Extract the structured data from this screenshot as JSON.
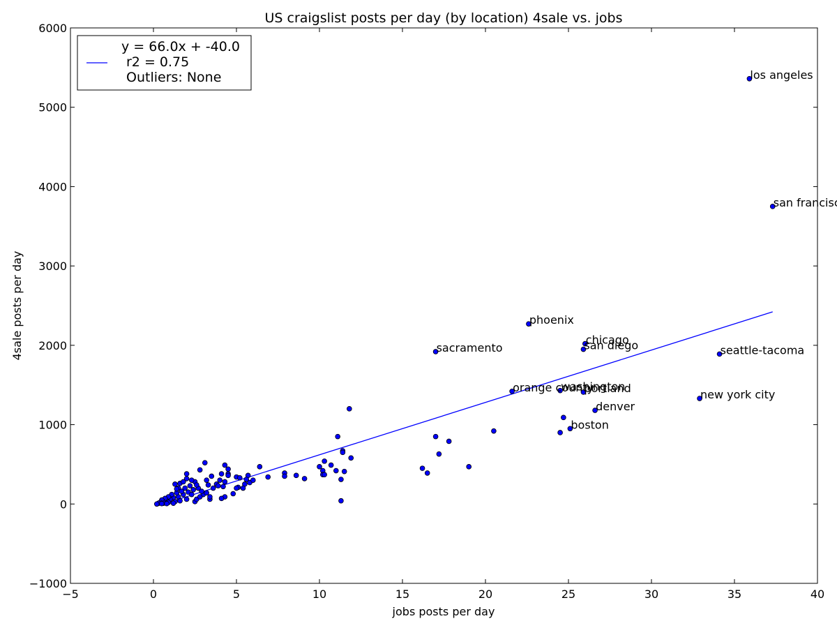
{
  "chart_data": {
    "type": "scatter",
    "title": "US craigslist posts per day (by location) 4sale vs. jobs",
    "xlabel": "jobs posts per day",
    "ylabel": "4sale posts per day",
    "xlim": [
      -5,
      40
    ],
    "ylim": [
      -1000,
      6000
    ],
    "xticks": [
      -5,
      0,
      5,
      10,
      15,
      20,
      25,
      30,
      35,
      40
    ],
    "yticks": [
      -1000,
      0,
      1000,
      2000,
      3000,
      4000,
      5000,
      6000
    ],
    "xtick_labels": [
      "−5",
      "0",
      "5",
      "10",
      "15",
      "20",
      "25",
      "30",
      "35",
      "40"
    ],
    "ytick_labels": [
      "−1000",
      "0",
      "1000",
      "2000",
      "3000",
      "4000",
      "5000",
      "6000"
    ],
    "grid": false,
    "legend": {
      "placement": "top-left",
      "line1": "y = 66.0x + -40.0",
      "line2": "r2 = 0.75",
      "line3": "Outliers: None"
    },
    "fit": {
      "slope": 66.0,
      "intercept": -40.0,
      "x_range": [
        0.2,
        37.3
      ],
      "color": "#0000ff"
    },
    "point_color": "#0000ff",
    "labeled_points": [
      {
        "label": "los angeles",
        "x": 35.9,
        "y": 5360
      },
      {
        "label": "san francisco",
        "x": 37.3,
        "y": 3750
      },
      {
        "label": "phoenix",
        "x": 22.6,
        "y": 2270
      },
      {
        "label": "chicago",
        "x": 26.0,
        "y": 2020
      },
      {
        "label": "san diego",
        "x": 25.9,
        "y": 1950
      },
      {
        "label": "sacramento",
        "x": 17.0,
        "y": 1920
      },
      {
        "label": "seattle-tacoma",
        "x": 34.1,
        "y": 1890
      },
      {
        "label": "orange county",
        "x": 21.6,
        "y": 1420
      },
      {
        "label": "washington",
        "x": 24.5,
        "y": 1430
      },
      {
        "label": "portland",
        "x": 25.9,
        "y": 1410
      },
      {
        "label": "new york city",
        "x": 32.9,
        "y": 1330
      },
      {
        "label": "denver",
        "x": 26.6,
        "y": 1180
      },
      {
        "label": "boston",
        "x": 25.1,
        "y": 950
      }
    ],
    "points": [
      {
        "x": 11.8,
        "y": 1200
      },
      {
        "x": 11.1,
        "y": 850
      },
      {
        "x": 11.4,
        "y": 670
      },
      {
        "x": 11.4,
        "y": 650
      },
      {
        "x": 11.9,
        "y": 580
      },
      {
        "x": 10.3,
        "y": 540
      },
      {
        "x": 10.7,
        "y": 490
      },
      {
        "x": 10.0,
        "y": 470
      },
      {
        "x": 10.2,
        "y": 420
      },
      {
        "x": 11.0,
        "y": 420
      },
      {
        "x": 11.5,
        "y": 410
      },
      {
        "x": 10.2,
        "y": 370
      },
      {
        "x": 10.3,
        "y": 370
      },
      {
        "x": 11.3,
        "y": 310
      },
      {
        "x": 11.3,
        "y": 40
      },
      {
        "x": 9.1,
        "y": 320
      },
      {
        "x": 8.6,
        "y": 360
      },
      {
        "x": 7.9,
        "y": 390
      },
      {
        "x": 7.9,
        "y": 350
      },
      {
        "x": 6.9,
        "y": 340
      },
      {
        "x": 6.4,
        "y": 470
      },
      {
        "x": 16.2,
        "y": 450
      },
      {
        "x": 16.5,
        "y": 390
      },
      {
        "x": 17.0,
        "y": 850
      },
      {
        "x": 17.2,
        "y": 630
      },
      {
        "x": 17.8,
        "y": 790
      },
      {
        "x": 19.0,
        "y": 470
      },
      {
        "x": 20.5,
        "y": 920
      },
      {
        "x": 24.5,
        "y": 900
      },
      {
        "x": 24.7,
        "y": 1090
      },
      {
        "x": 3.1,
        "y": 520
      },
      {
        "x": 4.3,
        "y": 490
      },
      {
        "x": 4.5,
        "y": 440
      },
      {
        "x": 4.5,
        "y": 380
      },
      {
        "x": 4.5,
        "y": 360
      },
      {
        "x": 4.1,
        "y": 380
      },
      {
        "x": 4.0,
        "y": 300
      },
      {
        "x": 4.3,
        "y": 280
      },
      {
        "x": 4.2,
        "y": 220
      },
      {
        "x": 3.8,
        "y": 250
      },
      {
        "x": 3.5,
        "y": 350
      },
      {
        "x": 3.2,
        "y": 300
      },
      {
        "x": 2.8,
        "y": 430
      },
      {
        "x": 2.5,
        "y": 280
      },
      {
        "x": 2.0,
        "y": 380
      },
      {
        "x": 2.0,
        "y": 320
      },
      {
        "x": 2.3,
        "y": 300
      },
      {
        "x": 1.6,
        "y": 260
      },
      {
        "x": 1.3,
        "y": 250
      },
      {
        "x": 1.5,
        "y": 200
      },
      {
        "x": 5.0,
        "y": 340
      },
      {
        "x": 5.2,
        "y": 330
      },
      {
        "x": 5.7,
        "y": 360
      },
      {
        "x": 5.6,
        "y": 310
      },
      {
        "x": 5.8,
        "y": 270
      },
      {
        "x": 6.0,
        "y": 300
      },
      {
        "x": 5.5,
        "y": 250
      },
      {
        "x": 5.4,
        "y": 200
      },
      {
        "x": 5.1,
        "y": 210
      },
      {
        "x": 5.0,
        "y": 200
      },
      {
        "x": 4.8,
        "y": 130
      },
      {
        "x": 4.3,
        "y": 90
      },
      {
        "x": 4.1,
        "y": 70
      },
      {
        "x": 3.4,
        "y": 60
      },
      {
        "x": 3.4,
        "y": 90
      },
      {
        "x": 3.0,
        "y": 120
      },
      {
        "x": 2.9,
        "y": 160
      },
      {
        "x": 2.7,
        "y": 200
      },
      {
        "x": 2.6,
        "y": 240
      },
      {
        "x": 2.4,
        "y": 180
      },
      {
        "x": 2.2,
        "y": 230
      },
      {
        "x": 2.1,
        "y": 150
      },
      {
        "x": 1.9,
        "y": 200
      },
      {
        "x": 1.8,
        "y": 120
      },
      {
        "x": 1.7,
        "y": 160
      },
      {
        "x": 1.5,
        "y": 90
      },
      {
        "x": 1.4,
        "y": 140
      },
      {
        "x": 1.2,
        "y": 80
      },
      {
        "x": 1.1,
        "y": 120
      },
      {
        "x": 1.0,
        "y": 60
      },
      {
        "x": 0.9,
        "y": 90
      },
      {
        "x": 0.8,
        "y": 40
      },
      {
        "x": 0.7,
        "y": 70
      },
      {
        "x": 0.6,
        "y": 30
      },
      {
        "x": 0.5,
        "y": 50
      },
      {
        "x": 0.4,
        "y": 20
      },
      {
        "x": 0.3,
        "y": 10
      },
      {
        "x": 0.2,
        "y": 0
      },
      {
        "x": 0.6,
        "y": 10
      },
      {
        "x": 0.9,
        "y": 20
      },
      {
        "x": 1.3,
        "y": 30
      },
      {
        "x": 1.6,
        "y": 40
      },
      {
        "x": 2.0,
        "y": 60
      },
      {
        "x": 2.5,
        "y": 30
      },
      {
        "x": 2.6,
        "y": 60
      },
      {
        "x": 2.8,
        "y": 90
      },
      {
        "x": 3.2,
        "y": 140
      },
      {
        "x": 3.6,
        "y": 200
      },
      {
        "x": 3.9,
        "y": 230
      },
      {
        "x": 1.2,
        "y": 10
      },
      {
        "x": 0.8,
        "y": 5
      },
      {
        "x": 0.5,
        "y": 5
      },
      {
        "x": 1.8,
        "y": 280
      },
      {
        "x": 2.3,
        "y": 120
      },
      {
        "x": 1.4,
        "y": 190
      },
      {
        "x": 3.3,
        "y": 240
      }
    ]
  }
}
